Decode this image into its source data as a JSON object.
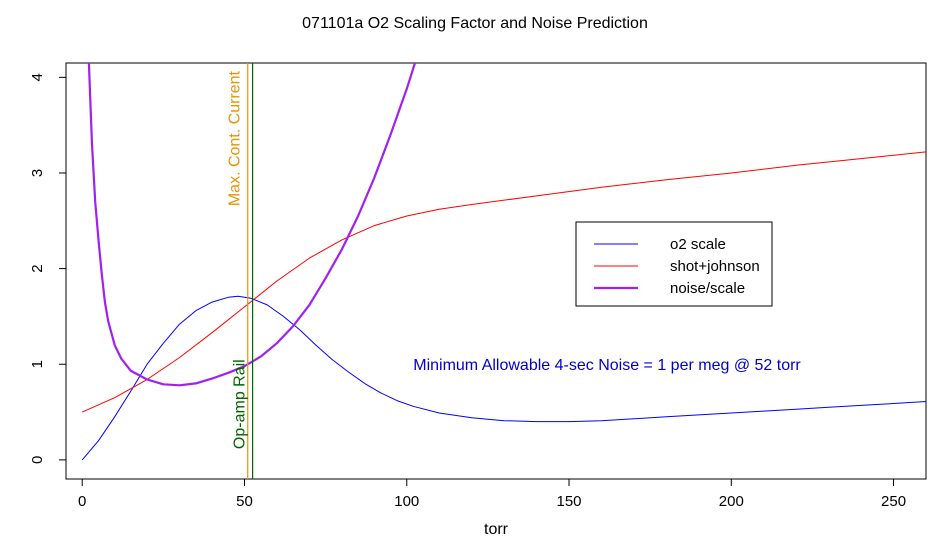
{
  "chart_data": {
    "type": "line",
    "title": "071101a   O2 Scaling Factor and Noise Prediction",
    "xlabel": "torr",
    "ylabel": "",
    "xlim": [
      -5,
      260
    ],
    "ylim": [
      -0.2,
      4.15
    ],
    "xticks": [
      0,
      50,
      100,
      150,
      200,
      250
    ],
    "yticks": [
      0,
      1,
      2,
      3,
      4
    ],
    "grid": false,
    "legend_position": "right",
    "series": [
      {
        "name": "o2 scale",
        "color": "#0000ff",
        "x": [
          0,
          5,
          10,
          15,
          20,
          25,
          30,
          35,
          40,
          45,
          48,
          52,
          57,
          62,
          67,
          72,
          77,
          82,
          87,
          92,
          97,
          102,
          110,
          120,
          130,
          140,
          150,
          160,
          170,
          180,
          190,
          200,
          210,
          220,
          230,
          240,
          250,
          260
        ],
        "y": [
          0.0,
          0.2,
          0.45,
          0.72,
          1.0,
          1.22,
          1.42,
          1.56,
          1.65,
          1.7,
          1.71,
          1.69,
          1.62,
          1.5,
          1.36,
          1.2,
          1.05,
          0.92,
          0.8,
          0.7,
          0.62,
          0.56,
          0.49,
          0.44,
          0.41,
          0.4,
          0.4,
          0.41,
          0.43,
          0.45,
          0.47,
          0.49,
          0.51,
          0.53,
          0.55,
          0.57,
          0.59,
          0.61
        ]
      },
      {
        "name": "shot+johnson",
        "color": "#ff0000",
        "x": [
          0,
          10,
          20,
          30,
          40,
          50,
          60,
          70,
          80,
          90,
          100,
          110,
          120,
          140,
          160,
          180,
          200,
          220,
          240,
          260
        ],
        "y": [
          0.5,
          0.65,
          0.84,
          1.07,
          1.33,
          1.6,
          1.87,
          2.11,
          2.3,
          2.45,
          2.55,
          2.62,
          2.67,
          2.76,
          2.85,
          2.93,
          3.0,
          3.08,
          3.15,
          3.22
        ]
      },
      {
        "name": "noise/scale",
        "color": "#a020f0",
        "x": [
          2,
          3,
          4,
          5,
          6,
          7,
          8,
          10,
          12,
          15,
          20,
          25,
          30,
          35,
          40,
          45,
          50,
          55,
          60,
          65,
          70,
          75,
          80,
          85,
          90,
          95,
          100,
          103
        ],
        "y": [
          4.2,
          3.3,
          2.7,
          2.3,
          1.95,
          1.65,
          1.45,
          1.2,
          1.06,
          0.93,
          0.84,
          0.79,
          0.78,
          0.8,
          0.85,
          0.91,
          0.98,
          1.08,
          1.22,
          1.4,
          1.62,
          1.9,
          2.2,
          2.55,
          2.95,
          3.4,
          3.88,
          4.2
        ]
      }
    ],
    "vlines": [
      {
        "x": 51,
        "color": "#e69500",
        "label": "Max. Cont. Current"
      },
      {
        "x": 52.5,
        "color": "#006400",
        "label": "Op-amp Rail"
      }
    ],
    "annotation": {
      "text": "Minimum Allowable 4-sec Noise =  1  per meg @  52  torr",
      "color": "#0000cd",
      "x": 102,
      "y": 1.0
    }
  }
}
